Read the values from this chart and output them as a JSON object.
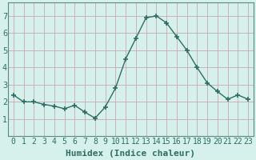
{
  "x": [
    0,
    1,
    2,
    3,
    4,
    5,
    6,
    7,
    8,
    9,
    10,
    11,
    12,
    13,
    14,
    15,
    16,
    17,
    18,
    19,
    20,
    21,
    22,
    23
  ],
  "y": [
    2.4,
    2.0,
    2.0,
    1.85,
    1.75,
    1.6,
    1.8,
    1.4,
    1.05,
    1.7,
    2.8,
    4.5,
    5.7,
    6.9,
    7.0,
    6.6,
    5.8,
    5.0,
    4.0,
    3.1,
    2.6,
    2.15,
    2.4,
    2.15
  ],
  "line_color": "#2d6e63",
  "marker": "+",
  "marker_size": 5,
  "marker_lw": 1.2,
  "xlabel": "Humidex (Indice chaleur)",
  "xlabel_fontsize": 8,
  "xlim": [
    -0.5,
    23.5
  ],
  "ylim": [
    0,
    7.8
  ],
  "yticks": [
    1,
    2,
    3,
    4,
    5,
    6,
    7
  ],
  "xtick_labels": [
    "0",
    "1",
    "2",
    "3",
    "4",
    "5",
    "6",
    "7",
    "8",
    "9",
    "10",
    "11",
    "12",
    "13",
    "14",
    "15",
    "16",
    "17",
    "18",
    "19",
    "20",
    "21",
    "22",
    "23"
  ],
  "bg_color": "#d6f0eb",
  "grid_color_h": "#c8a8b0",
  "grid_color_v": "#c8a8b0",
  "spine_color": "#5a8a80",
  "tick_fontsize": 7,
  "line_width": 1.0
}
